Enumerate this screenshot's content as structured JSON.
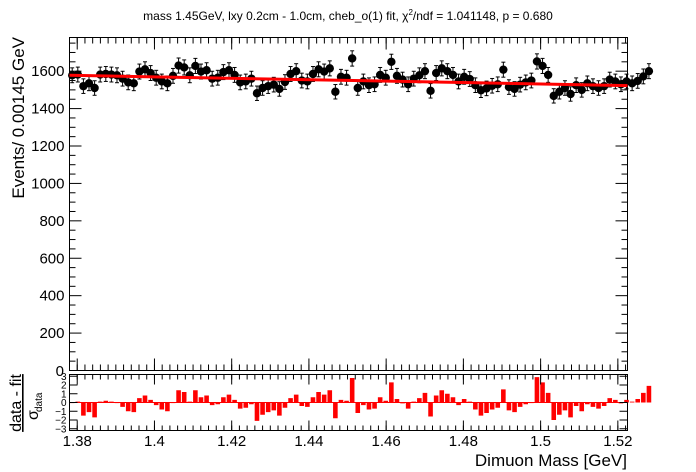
{
  "chart_data": [
    {
      "type": "scatter",
      "title": "mass 1.45GeV, lxy 0.2cm - 1.0cm, cheb_o(1) fit, χ²/ndf = 1.041148, p = 0.680",
      "title_parts": {
        "before": "mass 1.45GeV, lxy 0.2cm - 1.0cm, cheb_o(1) fit, χ",
        "sup": "2",
        "after": "/ndf = 1.041148, p = 0.680"
      },
      "ylabel": "Events/ 0.00145 GeV",
      "xlim": [
        1.378,
        1.5225
      ],
      "ylim": [
        0,
        1780
      ],
      "yticks": [
        200,
        400,
        600,
        800,
        1000,
        1200,
        1400,
        1600
      ],
      "ytick_labels": [
        "200",
        "400",
        "600",
        "800",
        "1000",
        "1200",
        "1400",
        "1600"
      ],
      "extra_tick_labels": [
        "0",
        "1.38"
      ],
      "bin_width": 0.00145,
      "x_start": 1.3787,
      "values": [
        1578,
        1582,
        1520,
        1535,
        1510,
        1582,
        1585,
        1582,
        1578,
        1560,
        1540,
        1535,
        1598,
        1610,
        1590,
        1565,
        1545,
        1535,
        1575,
        1630,
        1620,
        1578,
        1628,
        1598,
        1605,
        1560,
        1565,
        1595,
        1605,
        1580,
        1540,
        1545,
        1560,
        1482,
        1510,
        1520,
        1528,
        1505,
        1542,
        1585,
        1600,
        1550,
        1545,
        1585,
        1610,
        1598,
        1615,
        1490,
        1570,
        1565,
        1668,
        1510,
        1545,
        1525,
        1530,
        1580,
        1565,
        1650,
        1575,
        1555,
        1530,
        1560,
        1578,
        1600,
        1495,
        1590,
        1615,
        1600,
        1580,
        1545,
        1570,
        1558,
        1525,
        1498,
        1508,
        1522,
        1530,
        1608,
        1515,
        1505,
        1528,
        1540,
        1550,
        1652,
        1628,
        1580,
        1468,
        1490,
        1510,
        1478,
        1525,
        1500,
        1535,
        1520,
        1510,
        1520,
        1555,
        1545,
        1530,
        1545,
        1535,
        1548,
        1572,
        1600
      ],
      "fit_line": {
        "color": "#ff0000",
        "y_start": 1578,
        "y_end": 1523
      },
      "marker_color": "#000000"
    },
    {
      "type": "bar",
      "ylabel_main": "data - fit",
      "ylabel_sigma": "σ",
      "ylabel_sub": "data",
      "xlabel": "Dimuon Mass [GeV]",
      "ylim": [
        -3.2,
        3.2
      ],
      "yticks": [
        -3,
        -2,
        -1,
        0,
        1,
        2,
        3
      ],
      "ytick_labels": [
        "−3",
        "−2",
        "−1",
        "0",
        "1",
        "2",
        "3"
      ],
      "xticks": [
        1.38,
        1.4,
        1.42,
        1.44,
        1.46,
        1.48,
        1.5,
        1.52
      ],
      "xtick_labels": [
        "1.38",
        "1.4",
        "1.42",
        "1.44",
        "1.46",
        "1.48",
        "1.5",
        "1.52"
      ],
      "bar_color": "#ff0000",
      "values": [
        0.0,
        0.1,
        -1.5,
        -1.1,
        -1.7,
        0.1,
        0.2,
        0.1,
        0.0,
        -0.5,
        -1.0,
        -1.1,
        0.5,
        0.8,
        0.3,
        -0.3,
        -0.8,
        -1.0,
        0.0,
        1.4,
        1.2,
        0.1,
        1.4,
        0.6,
        0.8,
        -0.3,
        -0.2,
        0.6,
        0.9,
        0.3,
        -0.7,
        -0.6,
        -0.2,
        -2.1,
        -1.4,
        -1.1,
        -0.9,
        -1.5,
        -0.6,
        0.5,
        0.9,
        -0.4,
        -0.5,
        0.6,
        1.2,
        0.9,
        1.4,
        -1.8,
        0.3,
        0.2,
        2.8,
        -1.2,
        -0.3,
        -0.8,
        -0.7,
        0.6,
        0.2,
        2.3,
        0.4,
        -0.1,
        -0.7,
        0.1,
        0.5,
        1.1,
        -1.6,
        0.8,
        1.4,
        1.0,
        0.6,
        -0.3,
        0.4,
        0.1,
        -0.8,
        -1.5,
        -1.2,
        -0.8,
        -0.6,
        1.5,
        -0.9,
        -1.1,
        -0.5,
        -0.2,
        0.0,
        2.9,
        2.3,
        1.1,
        -2.0,
        -1.4,
        -0.9,
        -1.7,
        -0.4,
        -1.0,
        -0.2,
        -0.5,
        -0.7,
        -0.4,
        0.5,
        0.3,
        -0.1,
        0.3,
        0.1,
        0.4,
        1.1,
        1.9
      ]
    }
  ]
}
